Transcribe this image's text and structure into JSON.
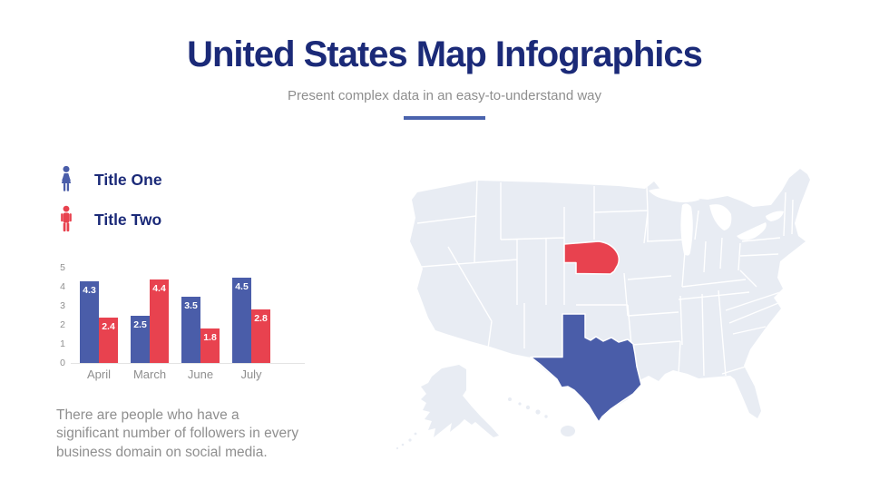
{
  "header": {
    "title": "United States Map Infographics",
    "subtitle": "Present complex data in an easy-to-understand way",
    "title_color": "#1b2a78",
    "accent_color": "#4a63ad"
  },
  "legend": {
    "items": [
      {
        "label": "Title One",
        "icon": "female-icon",
        "color": "#4a5da9"
      },
      {
        "label": "Title Two",
        "icon": "male-icon",
        "color": "#e8424f"
      }
    ]
  },
  "chart_data": {
    "type": "bar",
    "categories": [
      "April",
      "March",
      "June",
      "July"
    ],
    "series": [
      {
        "name": "Title One",
        "color": "#4a5da9",
        "values": [
          4.3,
          2.5,
          3.5,
          4.5
        ]
      },
      {
        "name": "Title Two",
        "color": "#e8424f",
        "values": [
          2.4,
          4.4,
          1.8,
          2.8
        ]
      }
    ],
    "ylim": [
      0,
      5
    ],
    "yticks": [
      0,
      1,
      2,
      3,
      4,
      5
    ],
    "grid": false,
    "value_labels": true,
    "legend_position": "none"
  },
  "description": {
    "lines": [
      "There are people who have a",
      "significant number of followers in every",
      "business domain on social media."
    ]
  },
  "map": {
    "label": "united-states-map",
    "base_color": "#e8ecf3",
    "border_color": "#ffffff",
    "highlights": [
      {
        "state": "Nebraska",
        "color": "#e8424f"
      },
      {
        "state": "Texas",
        "color": "#4a5da9"
      }
    ]
  }
}
